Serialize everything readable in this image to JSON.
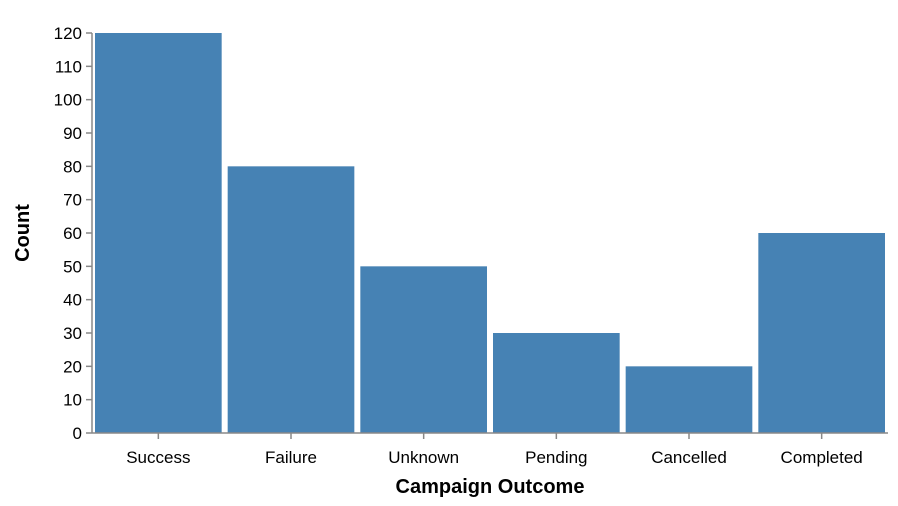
{
  "chart_data": {
    "type": "bar",
    "categories": [
      "Success",
      "Failure",
      "Unknown",
      "Pending",
      "Cancelled",
      "Completed"
    ],
    "values": [
      120,
      80,
      50,
      30,
      20,
      60
    ],
    "xlabel": "Campaign Outcome",
    "ylabel": "Count",
    "ylim": [
      0,
      120
    ],
    "yticks": [
      0,
      10,
      20,
      30,
      40,
      50,
      60,
      70,
      80,
      90,
      100,
      110,
      120
    ],
    "grid": false,
    "bar_color": "#4682b4"
  }
}
